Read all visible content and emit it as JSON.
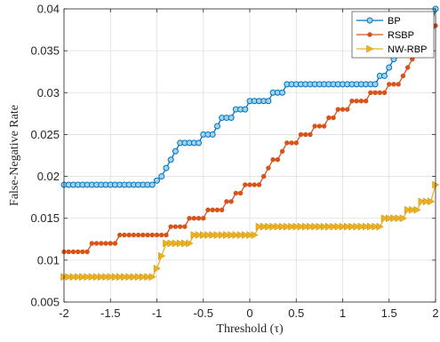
{
  "chart_data": {
    "type": "line",
    "xlabel": "Threshold (τ)",
    "ylabel": "False-Negative Rate",
    "xlim": [
      -2,
      2
    ],
    "ylim": [
      0.005,
      0.04
    ],
    "xticks": [
      "-2",
      "-1.5",
      "-1",
      "-0.5",
      "0",
      "0.5",
      "1",
      "1.5",
      "2"
    ],
    "yticks": [
      "0.005",
      "0.01",
      "0.015",
      "0.02",
      "0.025",
      "0.03",
      "0.035",
      "0.04"
    ],
    "grid": true,
    "legend_position": "top-right",
    "x_step": 0.05,
    "series": [
      {
        "name": "BP",
        "color": "#0072BD",
        "marker": "circle",
        "points": [
          [
            -2,
            0.019
          ],
          [
            -1.05,
            0.019
          ],
          [
            -1,
            0.0195
          ],
          [
            -0.95,
            0.02
          ],
          [
            -0.9,
            0.021
          ],
          [
            -0.85,
            0.022
          ],
          [
            -0.8,
            0.023
          ],
          [
            -0.75,
            0.024
          ],
          [
            -0.55,
            0.024
          ],
          [
            -0.5,
            0.025
          ],
          [
            -0.4,
            0.025
          ],
          [
            -0.35,
            0.026
          ],
          [
            -0.3,
            0.027
          ],
          [
            -0.2,
            0.027
          ],
          [
            -0.15,
            0.028
          ],
          [
            -0.05,
            0.028
          ],
          [
            0,
            0.029
          ],
          [
            0.2,
            0.029
          ],
          [
            0.25,
            0.03
          ],
          [
            0.35,
            0.03
          ],
          [
            0.4,
            0.031
          ],
          [
            1.3,
            0.031
          ],
          [
            1.35,
            0.031
          ],
          [
            1.4,
            0.032
          ],
          [
            1.45,
            0.032
          ],
          [
            1.5,
            0.033
          ],
          [
            1.55,
            0.034
          ],
          [
            1.6,
            0.035
          ],
          [
            1.7,
            0.035
          ],
          [
            1.75,
            0.036
          ],
          [
            1.8,
            0.036
          ],
          [
            1.85,
            0.037
          ],
          [
            1.9,
            0.037
          ],
          [
            1.95,
            0.038
          ],
          [
            2,
            0.04
          ]
        ]
      },
      {
        "name": "RSBP",
        "color": "#D95319",
        "marker": "dot",
        "points": [
          [
            -2,
            0.011
          ],
          [
            -1.75,
            0.011
          ],
          [
            -1.7,
            0.012
          ],
          [
            -1.45,
            0.012
          ],
          [
            -1.4,
            0.013
          ],
          [
            -0.9,
            0.013
          ],
          [
            -0.85,
            0.014
          ],
          [
            -0.7,
            0.014
          ],
          [
            -0.65,
            0.015
          ],
          [
            -0.5,
            0.015
          ],
          [
            -0.45,
            0.016
          ],
          [
            -0.3,
            0.016
          ],
          [
            -0.25,
            0.017
          ],
          [
            -0.2,
            0.017
          ],
          [
            -0.15,
            0.018
          ],
          [
            -0.1,
            0.018
          ],
          [
            -0.05,
            0.019
          ],
          [
            0.1,
            0.019
          ],
          [
            0.15,
            0.02
          ],
          [
            0.2,
            0.021
          ],
          [
            0.25,
            0.022
          ],
          [
            0.3,
            0.022
          ],
          [
            0.35,
            0.023
          ],
          [
            0.4,
            0.024
          ],
          [
            0.5,
            0.024
          ],
          [
            0.55,
            0.025
          ],
          [
            0.65,
            0.025
          ],
          [
            0.7,
            0.026
          ],
          [
            0.8,
            0.026
          ],
          [
            0.85,
            0.027
          ],
          [
            0.9,
            0.027
          ],
          [
            0.95,
            0.028
          ],
          [
            1.05,
            0.028
          ],
          [
            1.1,
            0.029
          ],
          [
            1.25,
            0.029
          ],
          [
            1.3,
            0.03
          ],
          [
            1.45,
            0.03
          ],
          [
            1.5,
            0.031
          ],
          [
            1.6,
            0.031
          ],
          [
            1.65,
            0.032
          ],
          [
            1.7,
            0.033
          ],
          [
            1.75,
            0.034
          ],
          [
            1.8,
            0.035
          ],
          [
            1.85,
            0.035
          ],
          [
            1.9,
            0.036
          ],
          [
            1.95,
            0.037
          ],
          [
            2,
            0.038
          ]
        ]
      },
      {
        "name": "NW-RBP",
        "color": "#EDB120",
        "marker": "triangle-right",
        "points": [
          [
            -2,
            0.008
          ],
          [
            -1.05,
            0.008
          ],
          [
            -1,
            0.009
          ],
          [
            -0.95,
            0.0105
          ],
          [
            -0.9,
            0.012
          ],
          [
            -0.65,
            0.012
          ],
          [
            -0.6,
            0.013
          ],
          [
            0.05,
            0.013
          ],
          [
            0.1,
            0.014
          ],
          [
            1.4,
            0.014
          ],
          [
            1.45,
            0.015
          ],
          [
            1.65,
            0.015
          ],
          [
            1.7,
            0.016
          ],
          [
            1.8,
            0.016
          ],
          [
            1.85,
            0.017
          ],
          [
            1.95,
            0.017
          ],
          [
            2,
            0.019
          ]
        ]
      }
    ]
  }
}
